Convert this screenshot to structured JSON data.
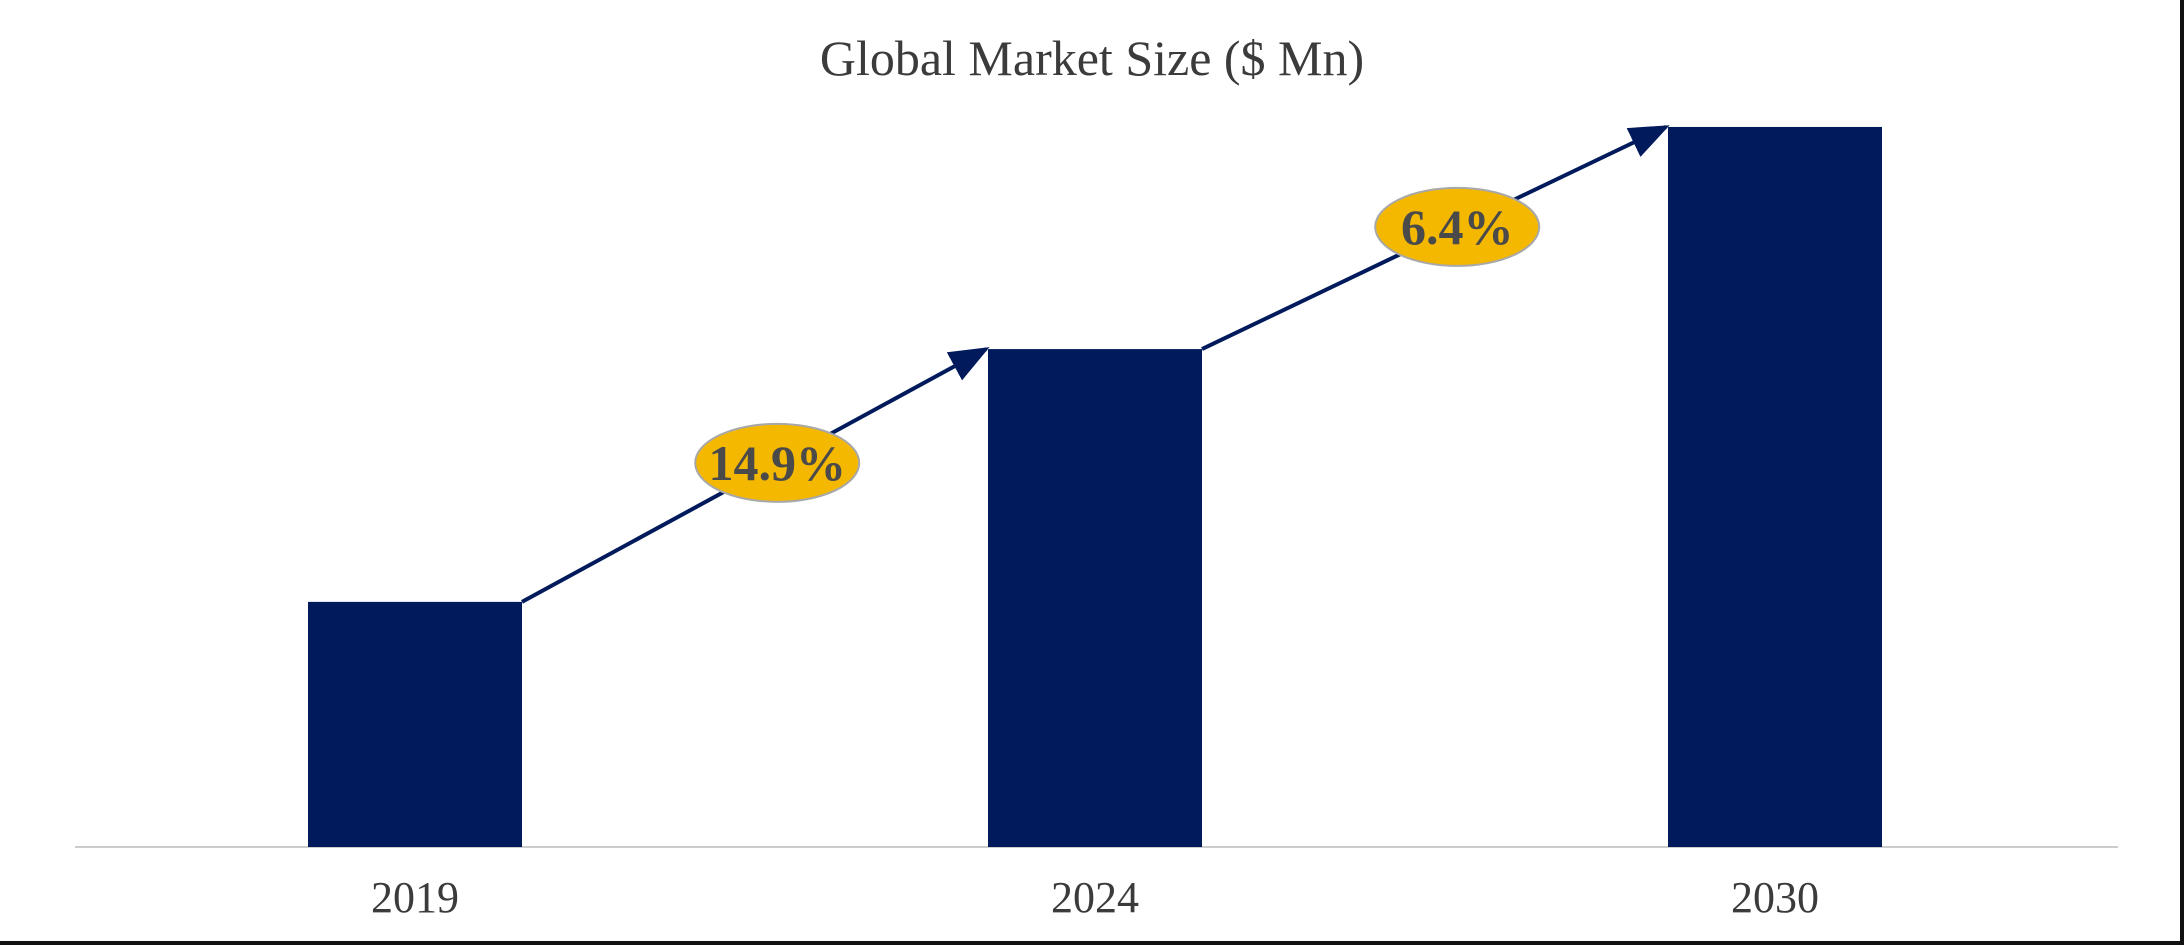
{
  "chart_data": {
    "type": "bar",
    "title": "Global Market Size ($ Mn)",
    "xlabel": "",
    "ylabel": "",
    "categories": [
      "2019",
      "2024",
      "2030"
    ],
    "values": [
      32,
      65,
      94
    ],
    "ylim": [
      0,
      100
    ],
    "grid": false,
    "legend": "none",
    "bar_color": "#001a5c",
    "axis_color": "#cccccc",
    "annotations": [
      {
        "label": "14.9%",
        "from": 0,
        "to": 1,
        "fill": "#f5b800",
        "stroke": "#a8a8a8",
        "arrow_color": "#001a5c"
      },
      {
        "label": "6.4%",
        "from": 1,
        "to": 2,
        "fill": "#f5b800",
        "stroke": "#a8a8a8",
        "arrow_color": "#001a5c"
      }
    ]
  }
}
